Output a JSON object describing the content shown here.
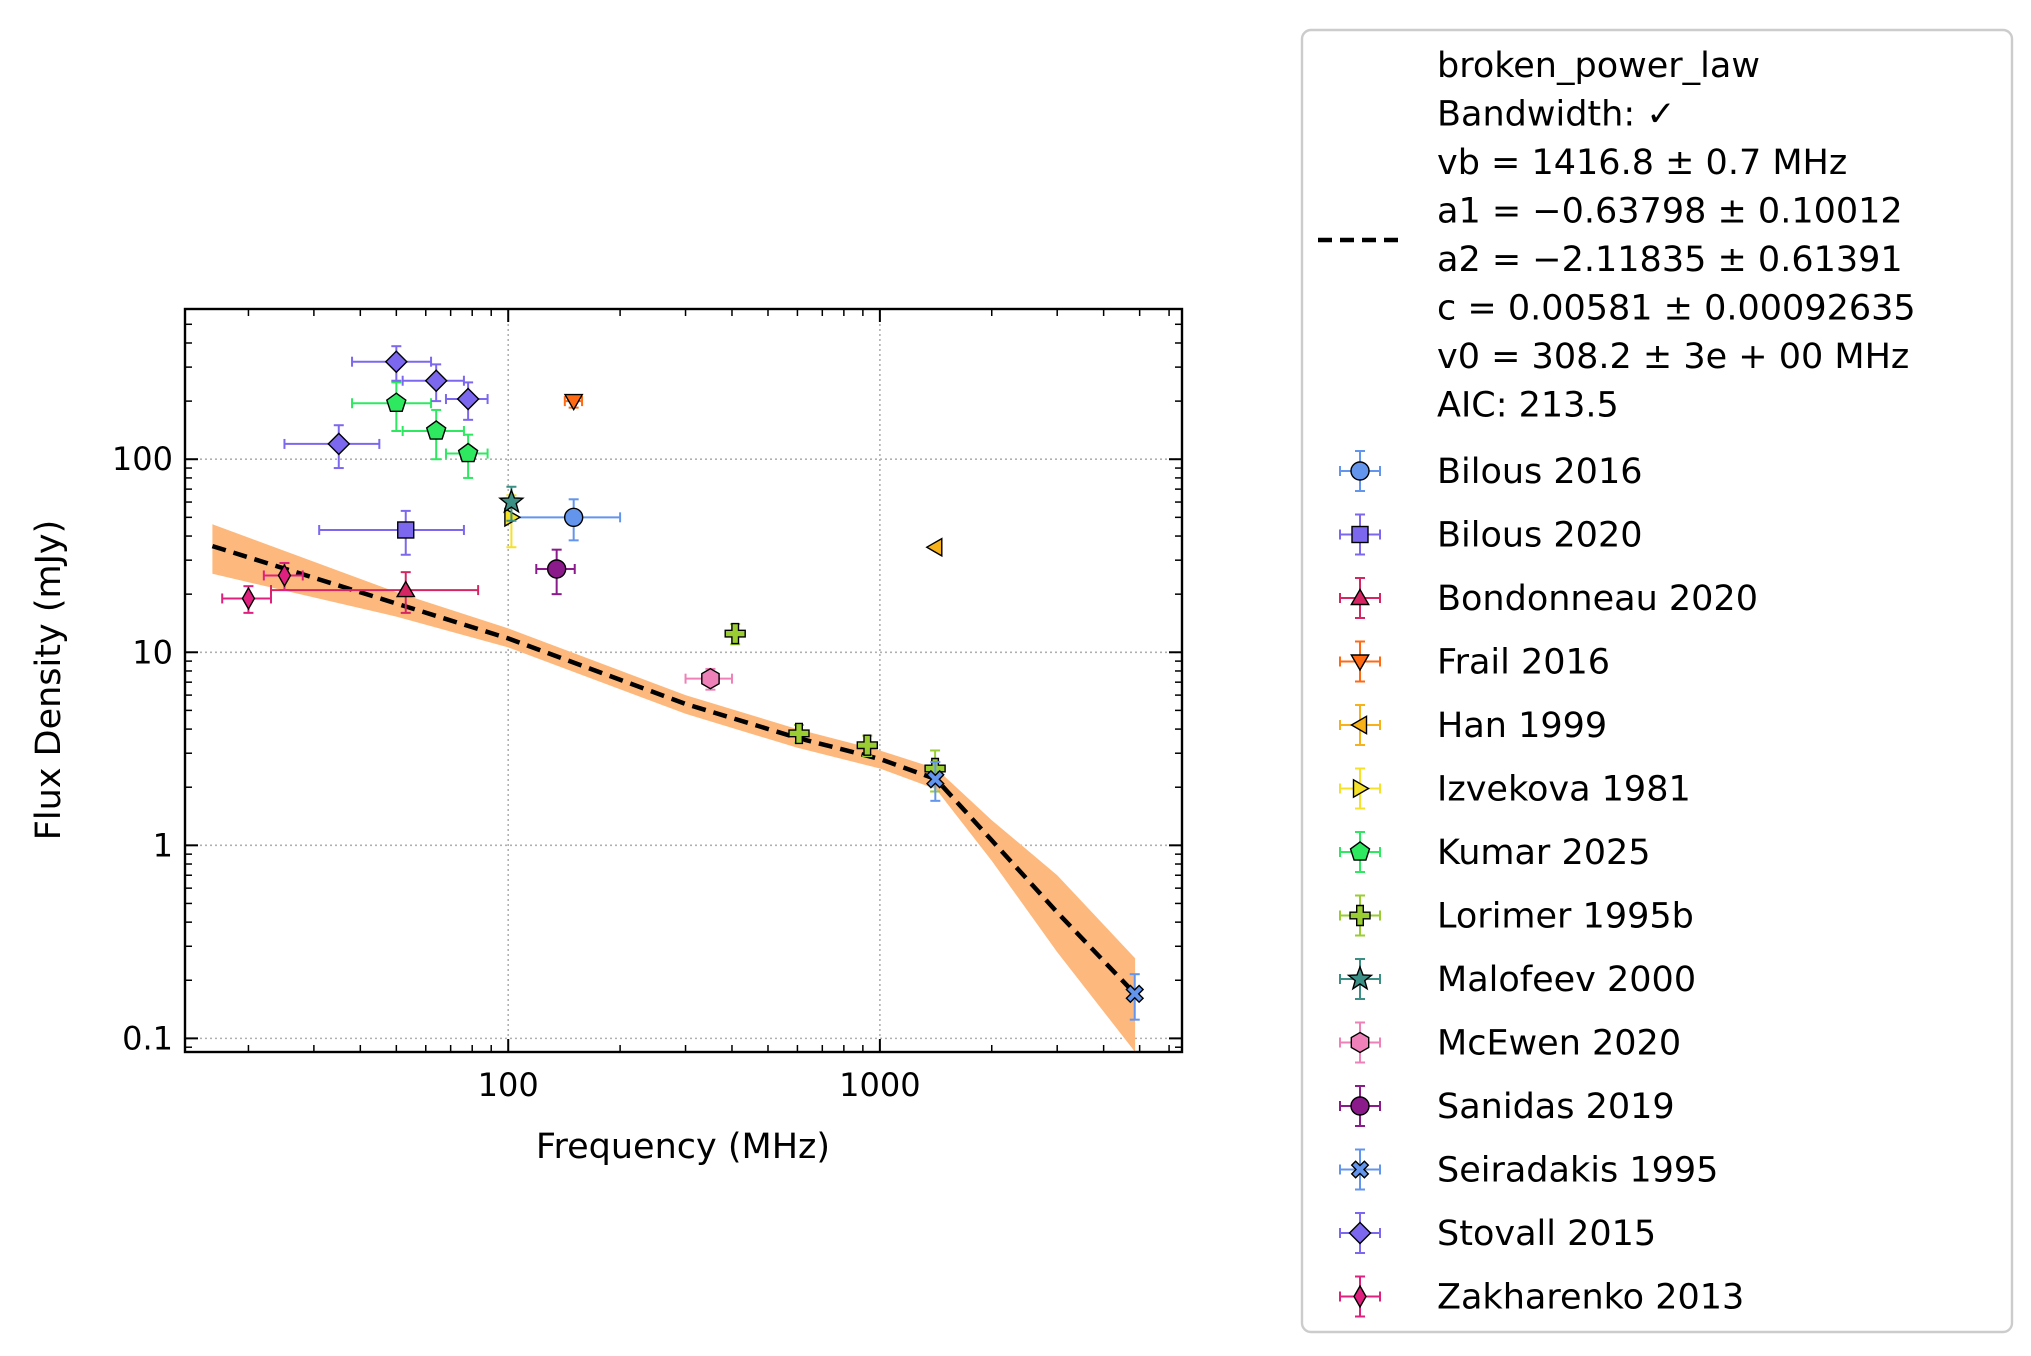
{
  "chart_data": {
    "type": "scatter",
    "title": "",
    "xlabel": "Frequency (MHz)",
    "ylabel": "Flux Density (mJy)",
    "xscale": "log",
    "yscale": "log",
    "xlim": [
      13.5,
      6500
    ],
    "ylim": [
      0.085,
      600
    ],
    "x_ticks": [
      100,
      1000
    ],
    "x_ticklabels": [
      "100",
      "1000"
    ],
    "y_ticks": [
      0.1,
      1,
      10,
      100
    ],
    "y_ticklabels": [
      "0.1",
      "1",
      "10",
      "100"
    ],
    "grid": true,
    "legend_position": "outside-right",
    "fit": {
      "model": "broken_power_law",
      "label_lines": [
        "broken_power_law",
        "Bandwidth: ✓",
        "vb = 1416.8 ± 0.7 MHz",
        "a1 = −0.63798 ± 0.10012",
        "a2 = −2.11835 ± 0.61391",
        "c = 0.00581 ± 0.00092635",
        "v0 = 308.2 ± 3e + 00 MHz",
        "AIC: 213.5"
      ],
      "line_color": "#000000",
      "band_color": "#fdb97d",
      "x_range": [
        16,
        4860
      ],
      "curve": [
        [
          16,
          35.5
        ],
        [
          50,
          17.9
        ],
        [
          100,
          11.8
        ],
        [
          300,
          5.4
        ],
        [
          600,
          3.6
        ],
        [
          1000,
          2.8
        ],
        [
          1416.8,
          2.2
        ],
        [
          2000,
          1.06
        ],
        [
          3000,
          0.45
        ],
        [
          4860,
          0.17
        ]
      ],
      "band_upper": [
        [
          16,
          46
        ],
        [
          50,
          20.5
        ],
        [
          100,
          13.3
        ],
        [
          300,
          6.0
        ],
        [
          600,
          4.0
        ],
        [
          1000,
          3.1
        ],
        [
          1416.8,
          2.5
        ],
        [
          2000,
          1.35
        ],
        [
          3000,
          0.7
        ],
        [
          4860,
          0.26
        ]
      ],
      "band_lower": [
        [
          16,
          25.5
        ],
        [
          50,
          15.3
        ],
        [
          100,
          10.6
        ],
        [
          300,
          4.8
        ],
        [
          600,
          3.2
        ],
        [
          1000,
          2.5
        ],
        [
          1416.8,
          1.95
        ],
        [
          2000,
          0.83
        ],
        [
          3000,
          0.28
        ],
        [
          4860,
          0.085
        ]
      ]
    },
    "series": [
      {
        "name": "Bilous 2016",
        "marker": "circle",
        "color": "#6495ed",
        "points": [
          {
            "x": 150,
            "y": 50,
            "xerr": [
              50,
              50
            ],
            "yerr": [
              12,
              12
            ]
          }
        ]
      },
      {
        "name": "Bilous 2020",
        "marker": "square",
        "color": "#7b68ee",
        "points": [
          {
            "x": 53,
            "y": 43,
            "xerr": [
              22,
              23
            ],
            "yerr": [
              11,
              11
            ]
          }
        ]
      },
      {
        "name": "Bondonneau 2020",
        "marker": "triangle-up",
        "color": "#d62563",
        "points": [
          {
            "x": 53,
            "y": 21,
            "xerr": [
              30,
              30
            ],
            "yerr": [
              5,
              5
            ]
          }
        ]
      },
      {
        "name": "Frail 2016",
        "marker": "triangle-down",
        "color": "#ff6a13",
        "points": [
          {
            "x": 150,
            "y": 200,
            "xerr": [
              8,
              8
            ],
            "yerr": [
              15,
              15
            ]
          }
        ]
      },
      {
        "name": "Han 1999",
        "marker": "triangle-left",
        "color": "#f7b21a",
        "points": [
          {
            "x": 1410,
            "y": 35,
            "xerr": [
              0,
              0
            ],
            "yerr": [
              0,
              0
            ]
          }
        ]
      },
      {
        "name": "Izvekova 1981",
        "marker": "triangle-right",
        "color": "#f5e12a",
        "points": [
          {
            "x": 102,
            "y": 50,
            "xerr": [
              0,
              0
            ],
            "yerr": [
              15,
              15
            ]
          }
        ]
      },
      {
        "name": "Kumar 2025",
        "marker": "pentagon",
        "color": "#2ee860",
        "points": [
          {
            "x": 50,
            "y": 195,
            "xerr": [
              12,
              12
            ],
            "yerr": [
              55,
              55
            ]
          },
          {
            "x": 64,
            "y": 140,
            "xerr": [
              12,
              12
            ],
            "yerr": [
              40,
              40
            ]
          },
          {
            "x": 78,
            "y": 107,
            "xerr": [
              10,
              10
            ],
            "yerr": [
              27,
              27
            ]
          }
        ]
      },
      {
        "name": "Lorimer 1995b",
        "marker": "plus",
        "color": "#9acd32",
        "points": [
          {
            "x": 408,
            "y": 12.5,
            "xerr": [
              0,
              0
            ],
            "yerr": [
              1.5,
              1.5
            ]
          },
          {
            "x": 606,
            "y": 3.8,
            "xerr": [
              0,
              0
            ],
            "yerr": [
              0.4,
              0.4
            ]
          },
          {
            "x": 925,
            "y": 3.3,
            "xerr": [
              0,
              0
            ],
            "yerr": [
              0.4,
              0.4
            ]
          },
          {
            "x": 1408,
            "y": 2.5,
            "xerr": [
              0,
              0
            ],
            "yerr": [
              0.6,
              0.6
            ]
          }
        ]
      },
      {
        "name": "Malofeev 2000",
        "marker": "star",
        "color": "#3c8f85",
        "points": [
          {
            "x": 102,
            "y": 60,
            "xerr": [
              0,
              0
            ],
            "yerr": [
              12,
              12
            ]
          }
        ]
      },
      {
        "name": "McEwen 2020",
        "marker": "hexagon",
        "color": "#ee82b8",
        "points": [
          {
            "x": 350,
            "y": 7.3,
            "xerr": [
              50,
              50
            ],
            "yerr": [
              0.9,
              0.9
            ]
          }
        ]
      },
      {
        "name": "Sanidas 2019",
        "marker": "circle",
        "color": "#8b1a8b",
        "points": [
          {
            "x": 135,
            "y": 27,
            "xerr": [
              16,
              16
            ],
            "yerr": [
              7,
              7
            ]
          }
        ]
      },
      {
        "name": "Seiradakis 1995",
        "marker": "x",
        "color": "#6495ed",
        "points": [
          {
            "x": 1410,
            "y": 2.2,
            "xerr": [
              0,
              0
            ],
            "yerr": [
              0.5,
              0.5
            ]
          },
          {
            "x": 4850,
            "y": 0.17,
            "xerr": [
              0,
              0
            ],
            "yerr": [
              0.045,
              0.045
            ]
          }
        ]
      },
      {
        "name": "Stovall 2015",
        "marker": "diamond",
        "color": "#7b68ee",
        "points": [
          {
            "x": 35,
            "y": 120,
            "xerr": [
              10,
              10
            ],
            "yerr": [
              30,
              30
            ]
          },
          {
            "x": 50,
            "y": 320,
            "xerr": [
              12,
              12
            ],
            "yerr": [
              65,
              65
            ]
          },
          {
            "x": 64,
            "y": 255,
            "xerr": [
              12,
              12
            ],
            "yerr": [
              55,
              55
            ]
          },
          {
            "x": 78,
            "y": 205,
            "xerr": [
              10,
              10
            ],
            "yerr": [
              45,
              45
            ]
          }
        ]
      },
      {
        "name": "Zakharenko 2013",
        "marker": "thin-diamond",
        "color": "#e0207f",
        "points": [
          {
            "x": 20,
            "y": 19,
            "xerr": [
              3,
              3
            ],
            "yerr": [
              3,
              3
            ]
          },
          {
            "x": 25,
            "y": 25,
            "xerr": [
              3,
              3
            ],
            "yerr": [
              4,
              4
            ]
          }
        ]
      }
    ]
  }
}
